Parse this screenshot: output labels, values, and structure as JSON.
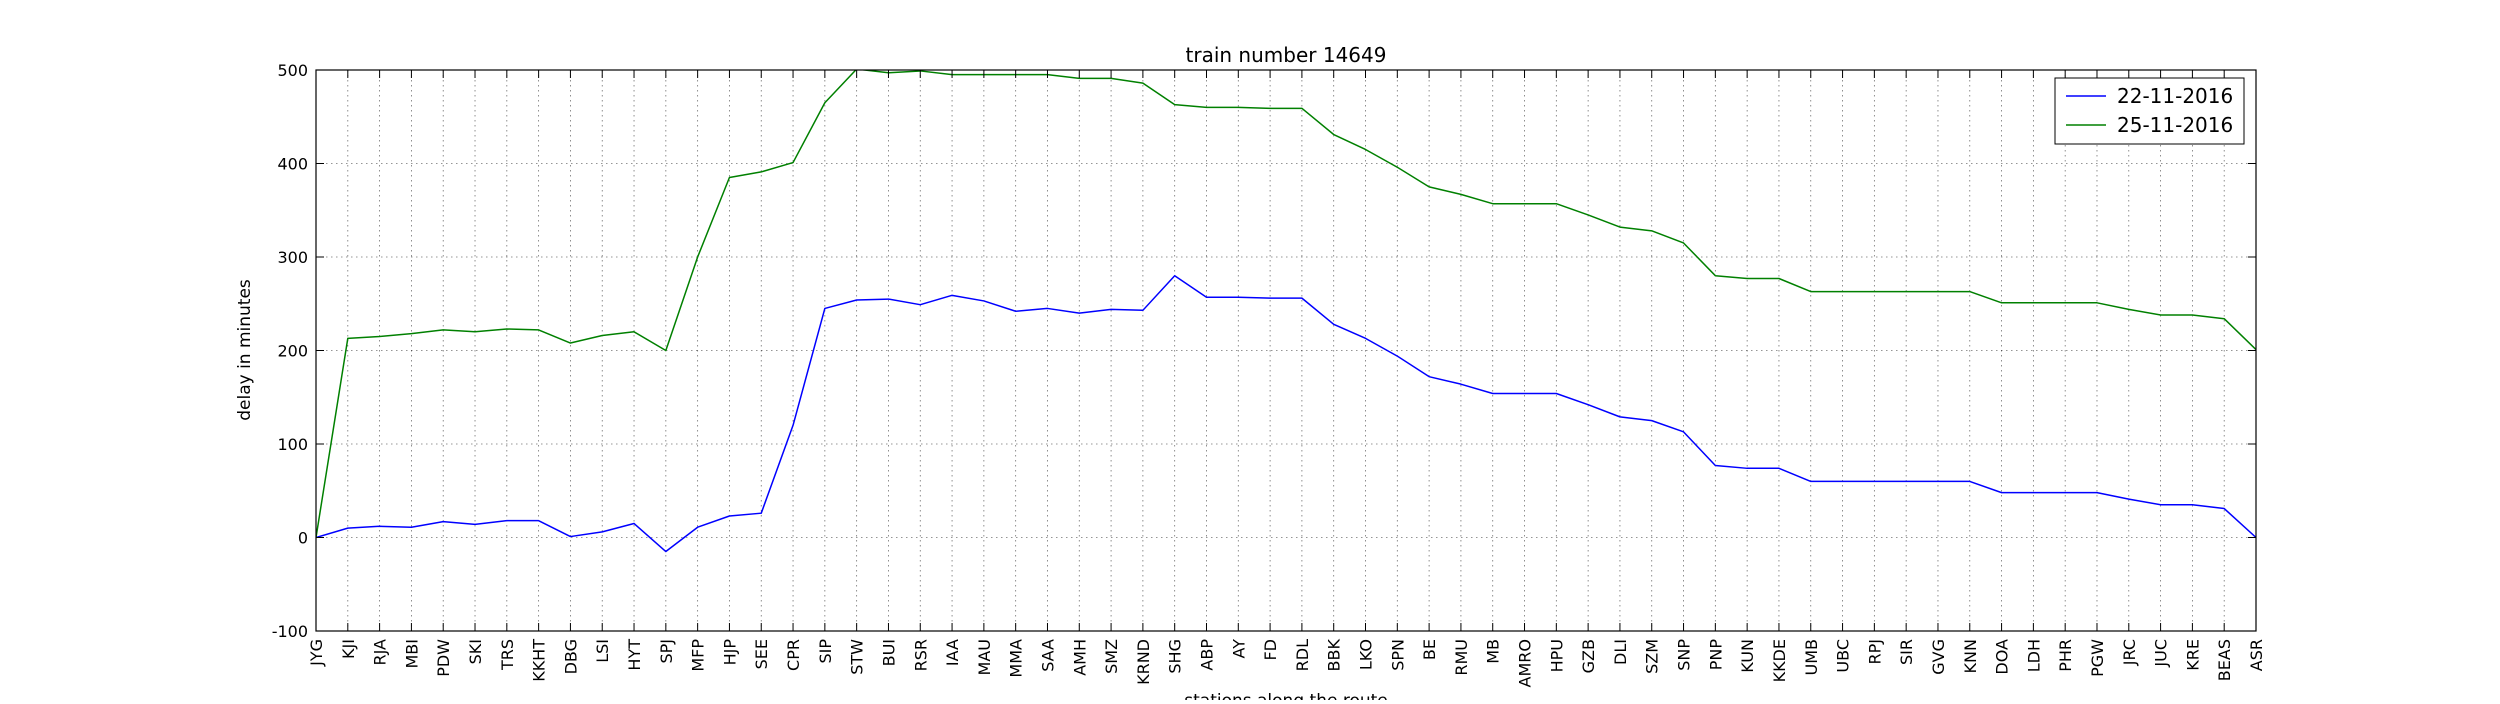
{
  "chart_data": {
    "type": "line",
    "title": "train number 14649",
    "xlabel": "stations along the route",
    "ylabel": "delay in minutes",
    "ylim": [
      -100,
      500
    ],
    "yticks": [
      -100,
      0,
      100,
      200,
      300,
      400,
      500
    ],
    "grid": true,
    "legend_position": "top-right",
    "categories": [
      "JYG",
      "KJI",
      "RJA",
      "MBI",
      "PDW",
      "SKI",
      "TRS",
      "KKHT",
      "DBG",
      "LSI",
      "HYT",
      "SPJ",
      "MFP",
      "HJP",
      "SEE",
      "CPR",
      "SIP",
      "STW",
      "BUI",
      "RSR",
      "IAA",
      "MAU",
      "MMA",
      "SAA",
      "AMH",
      "SMZ",
      "KRND",
      "SHG",
      "ABP",
      "AY",
      "FD",
      "RDL",
      "BBK",
      "LKO",
      "SPN",
      "BE",
      "RMU",
      "MB",
      "AMRO",
      "HPU",
      "GZB",
      "DLI",
      "SZM",
      "SNP",
      "PNP",
      "KUN",
      "KKDE",
      "UMB",
      "UBC",
      "RPJ",
      "SIR",
      "GVG",
      "KNN",
      "DOA",
      "LDH",
      "PHR",
      "PGW",
      "JRC",
      "JUC",
      "KRE",
      "BEAS",
      "ASR"
    ],
    "series": [
      {
        "name": "22-11-2016",
        "color": "#0000ff",
        "values": [
          0,
          10,
          12,
          11,
          17,
          14,
          18,
          18,
          1,
          6,
          15,
          -15,
          11,
          23,
          26,
          120,
          245,
          254,
          255,
          249,
          259,
          253,
          242,
          245,
          240,
          244,
          243,
          280,
          257,
          257,
          256,
          256,
          228,
          213,
          194,
          172,
          164,
          154,
          154,
          154,
          142,
          129,
          125,
          113,
          77,
          74,
          74,
          60,
          60,
          60,
          60,
          60,
          60,
          48,
          48,
          48,
          48,
          41,
          35,
          35,
          31,
          0
        ]
      },
      {
        "name": "25-11-2016",
        "color": "#008000",
        "values": [
          0,
          213,
          215,
          218,
          222,
          220,
          223,
          222,
          208,
          216,
          220,
          200,
          300,
          385,
          391,
          401,
          465,
          501,
          497,
          499,
          495,
          495,
          495,
          495,
          491,
          491,
          486,
          463,
          460,
          460,
          459,
          459,
          431,
          415,
          396,
          375,
          367,
          357,
          357,
          357,
          345,
          332,
          328,
          315,
          280,
          277,
          277,
          263,
          263,
          263,
          263,
          263,
          263,
          251,
          251,
          251,
          251,
          244,
          238,
          238,
          234,
          201
        ]
      }
    ]
  }
}
